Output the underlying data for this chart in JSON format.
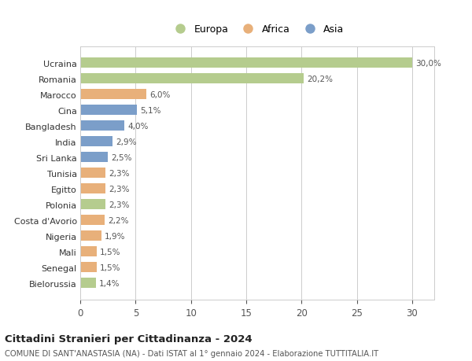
{
  "countries": [
    "Ucraina",
    "Romania",
    "Marocco",
    "Cina",
    "Bangladesh",
    "India",
    "Sri Lanka",
    "Tunisia",
    "Egitto",
    "Polonia",
    "Costa d'Avorio",
    "Nigeria",
    "Mali",
    "Senegal",
    "Bielorussia"
  ],
  "values": [
    30.0,
    20.2,
    6.0,
    5.1,
    4.0,
    2.9,
    2.5,
    2.3,
    2.3,
    2.3,
    2.2,
    1.9,
    1.5,
    1.5,
    1.4
  ],
  "labels": [
    "30,0%",
    "20,2%",
    "6,0%",
    "5,1%",
    "4,0%",
    "2,9%",
    "2,5%",
    "2,3%",
    "2,3%",
    "2,3%",
    "2,2%",
    "1,9%",
    "1,5%",
    "1,5%",
    "1,4%"
  ],
  "continents": [
    "Europa",
    "Europa",
    "Africa",
    "Asia",
    "Asia",
    "Asia",
    "Asia",
    "Africa",
    "Africa",
    "Europa",
    "Africa",
    "Africa",
    "Africa",
    "Africa",
    "Europa"
  ],
  "colors": {
    "Europa": "#b5cc8e",
    "Africa": "#e8b07a",
    "Asia": "#7b9ec9"
  },
  "legend_order": [
    "Europa",
    "Africa",
    "Asia"
  ],
  "title": "Cittadini Stranieri per Cittadinanza - 2024",
  "subtitle": "COMUNE DI SANT'ANASTASIA (NA) - Dati ISTAT al 1° gennaio 2024 - Elaborazione TUTTITALIA.IT",
  "xlim": [
    0,
    32
  ],
  "xticks": [
    0,
    5,
    10,
    15,
    20,
    25,
    30
  ],
  "bg_color": "#ffffff",
  "grid_color": "#cccccc",
  "bar_height": 0.65
}
